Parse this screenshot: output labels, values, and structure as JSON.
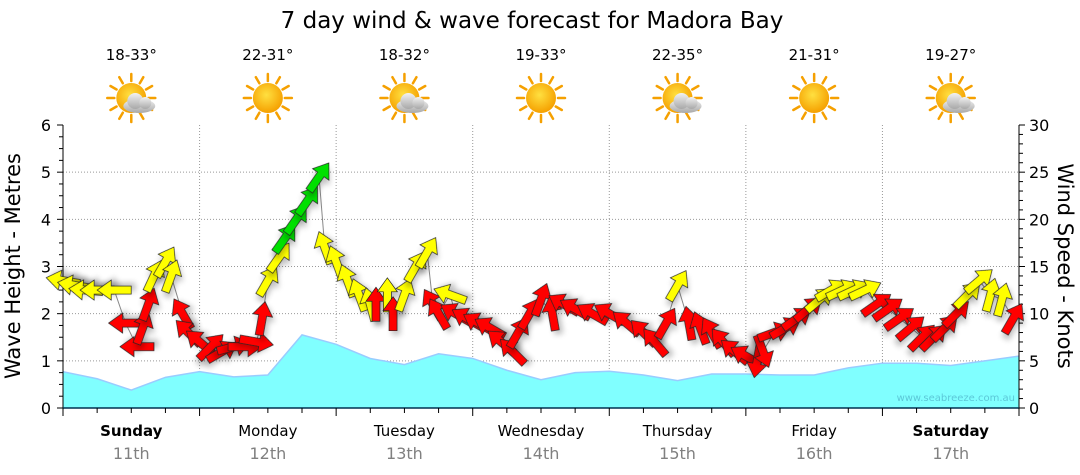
{
  "chart_data": {
    "type": "line",
    "title": "7 day wind & wave forecast for Madora Bay",
    "ylabel_left": "Wave Height - Metres",
    "ylabel_right": "Wind Speed - Knots",
    "ylim_left": [
      0,
      6
    ],
    "ylim_right": [
      0,
      30
    ],
    "yticks_left": [
      "0",
      "1",
      "2",
      "3",
      "4",
      "5",
      "6"
    ],
    "yticks_right": [
      "0",
      "5",
      "10",
      "15",
      "20",
      "25",
      "30"
    ],
    "grid": true,
    "watermark": "www.seabreeze.com.au",
    "days": [
      {
        "name": "Sunday",
        "date": "11th",
        "bold": true,
        "temps": "18-33°",
        "weather_icon": "partly-cloudy-icon"
      },
      {
        "name": "Monday",
        "date": "12th",
        "bold": false,
        "temps": "22-31°",
        "weather_icon": "sunny-icon"
      },
      {
        "name": "Tuesday",
        "date": "13th",
        "bold": false,
        "temps": "18-32°",
        "weather_icon": "partly-cloudy-icon"
      },
      {
        "name": "Wednesday",
        "date": "14th",
        "bold": false,
        "temps": "19-33°",
        "weather_icon": "sunny-icon"
      },
      {
        "name": "Thursday",
        "date": "15th",
        "bold": false,
        "temps": "22-35°",
        "weather_icon": "partly-cloudy-icon"
      },
      {
        "name": "Friday",
        "date": "16th",
        "bold": false,
        "temps": "21-31°",
        "weather_icon": "sunny-icon"
      },
      {
        "name": "Saturday",
        "date": "17th",
        "bold": true,
        "temps": "19-27°",
        "weather_icon": "partly-cloudy-icon"
      }
    ],
    "wave_series": {
      "name": "Wave Height (m)",
      "hours": [
        0,
        6,
        12,
        18,
        24,
        30,
        36,
        42,
        48,
        54,
        60,
        66,
        72,
        78,
        84,
        90,
        96,
        102,
        108,
        114,
        120,
        126,
        132,
        138,
        144,
        150,
        156,
        162,
        168
      ],
      "values": [
        0.77,
        0.62,
        0.38,
        0.65,
        0.77,
        0.66,
        0.7,
        1.55,
        1.35,
        1.05,
        0.92,
        1.15,
        1.05,
        0.8,
        0.6,
        0.75,
        0.78,
        0.7,
        0.58,
        0.72,
        0.72,
        0.7,
        0.7,
        0.85,
        0.95,
        0.95,
        0.9,
        1.0,
        1.1
      ]
    },
    "wind_series": {
      "name": "Wind Speed (knots) & direction",
      "points": [
        {
          "h": 0,
          "kn": 13.5,
          "dir": 280,
          "c": "yellow"
        },
        {
          "h": 2,
          "kn": 13,
          "dir": 280,
          "c": "yellow"
        },
        {
          "h": 4,
          "kn": 12.5,
          "dir": 275,
          "c": "yellow"
        },
        {
          "h": 6,
          "kn": 12.5,
          "dir": 270,
          "c": "yellow"
        },
        {
          "h": 9,
          "kn": 12.5,
          "dir": 270,
          "c": "yellow"
        },
        {
          "h": 11,
          "kn": 9,
          "dir": 270,
          "c": "red"
        },
        {
          "h": 13,
          "kn": 6.5,
          "dir": 270,
          "c": "red"
        },
        {
          "h": 14,
          "kn": 8.5,
          "dir": 20,
          "c": "red"
        },
        {
          "h": 15,
          "kn": 11,
          "dir": 20,
          "c": "red"
        },
        {
          "h": 16,
          "kn": 14,
          "dir": 25,
          "c": "yellow"
        },
        {
          "h": 18,
          "kn": 15.5,
          "dir": 30,
          "c": "yellow"
        },
        {
          "h": 19,
          "kn": 14,
          "dir": 20,
          "c": "yellow"
        },
        {
          "h": 21,
          "kn": 10,
          "dir": 330,
          "c": "red"
        },
        {
          "h": 22,
          "kn": 8,
          "dir": 315,
          "c": "red"
        },
        {
          "h": 24,
          "kn": 7,
          "dir": 310,
          "c": "red"
        },
        {
          "h": 26,
          "kn": 6.5,
          "dir": 45,
          "c": "red"
        },
        {
          "h": 28,
          "kn": 6,
          "dir": 60,
          "c": "red"
        },
        {
          "h": 30,
          "kn": 6.5,
          "dir": 75,
          "c": "red"
        },
        {
          "h": 32,
          "kn": 6.5,
          "dir": 90,
          "c": "red"
        },
        {
          "h": 34,
          "kn": 7,
          "dir": 100,
          "c": "red"
        },
        {
          "h": 35,
          "kn": 9.5,
          "dir": 10,
          "c": "red"
        },
        {
          "h": 36,
          "kn": 13.5,
          "dir": 30,
          "c": "yellow"
        },
        {
          "h": 38,
          "kn": 16,
          "dir": 35,
          "c": "yellow"
        },
        {
          "h": 39,
          "kn": 18,
          "dir": 35,
          "c": "green"
        },
        {
          "h": 41,
          "kn": 20,
          "dir": 35,
          "c": "green"
        },
        {
          "h": 43,
          "kn": 22,
          "dir": 35,
          "c": "green"
        },
        {
          "h": 45,
          "kn": 24.5,
          "dir": 35,
          "c": "green"
        },
        {
          "h": 46,
          "kn": 17,
          "dir": 340,
          "c": "yellow"
        },
        {
          "h": 48,
          "kn": 15.5,
          "dir": 340,
          "c": "yellow"
        },
        {
          "h": 50,
          "kn": 13.5,
          "dir": 340,
          "c": "yellow"
        },
        {
          "h": 52,
          "kn": 12,
          "dir": 340,
          "c": "yellow"
        },
        {
          "h": 54,
          "kn": 11,
          "dir": 345,
          "c": "yellow"
        },
        {
          "h": 55,
          "kn": 11,
          "dir": 0,
          "c": "red"
        },
        {
          "h": 57,
          "kn": 12,
          "dir": 0,
          "c": "yellow"
        },
        {
          "h": 58,
          "kn": 10,
          "dir": 0,
          "c": "red"
        },
        {
          "h": 60,
          "kn": 12,
          "dir": 20,
          "c": "yellow"
        },
        {
          "h": 62,
          "kn": 15,
          "dir": 30,
          "c": "yellow"
        },
        {
          "h": 64,
          "kn": 16.5,
          "dir": 30,
          "c": "yellow"
        },
        {
          "h": 65,
          "kn": 11,
          "dir": 330,
          "c": "red"
        },
        {
          "h": 66,
          "kn": 10,
          "dir": 330,
          "c": "red"
        },
        {
          "h": 68,
          "kn": 12,
          "dir": 290,
          "c": "yellow"
        },
        {
          "h": 69,
          "kn": 10,
          "dir": 300,
          "c": "red"
        },
        {
          "h": 71,
          "kn": 9.5,
          "dir": 300,
          "c": "red"
        },
        {
          "h": 73,
          "kn": 9,
          "dir": 300,
          "c": "red"
        },
        {
          "h": 75,
          "kn": 8.5,
          "dir": 300,
          "c": "red"
        },
        {
          "h": 77,
          "kn": 7,
          "dir": 310,
          "c": "red"
        },
        {
          "h": 79,
          "kn": 6,
          "dir": 315,
          "c": "red"
        },
        {
          "h": 80,
          "kn": 8,
          "dir": 30,
          "c": "red"
        },
        {
          "h": 82,
          "kn": 10,
          "dir": 30,
          "c": "red"
        },
        {
          "h": 84,
          "kn": 11.5,
          "dir": 20,
          "c": "red"
        },
        {
          "h": 86,
          "kn": 10,
          "dir": 350,
          "c": "red"
        },
        {
          "h": 88,
          "kn": 11,
          "dir": 300,
          "c": "red"
        },
        {
          "h": 90,
          "kn": 10.5,
          "dir": 300,
          "c": "red"
        },
        {
          "h": 93,
          "kn": 10,
          "dir": 300,
          "c": "red"
        },
        {
          "h": 96,
          "kn": 10,
          "dir": 300,
          "c": "red"
        },
        {
          "h": 99,
          "kn": 9,
          "dir": 310,
          "c": "red"
        },
        {
          "h": 102,
          "kn": 8,
          "dir": 315,
          "c": "red"
        },
        {
          "h": 104,
          "kn": 7,
          "dir": 320,
          "c": "red"
        },
        {
          "h": 106,
          "kn": 9,
          "dir": 30,
          "c": "red"
        },
        {
          "h": 108,
          "kn": 13,
          "dir": 30,
          "c": "yellow"
        },
        {
          "h": 110,
          "kn": 9,
          "dir": 350,
          "c": "red"
        },
        {
          "h": 112,
          "kn": 8.5,
          "dir": 340,
          "c": "red"
        },
        {
          "h": 114,
          "kn": 8,
          "dir": 330,
          "c": "red"
        },
        {
          "h": 116,
          "kn": 7,
          "dir": 320,
          "c": "red"
        },
        {
          "h": 118,
          "kn": 6,
          "dir": 310,
          "c": "red"
        },
        {
          "h": 120,
          "kn": 5.5,
          "dir": 300,
          "c": "red"
        },
        {
          "h": 122,
          "kn": 5,
          "dir": 190,
          "c": "red"
        },
        {
          "h": 123,
          "kn": 6,
          "dir": 160,
          "c": "red"
        },
        {
          "h": 125,
          "kn": 8,
          "dir": 70,
          "c": "red"
        },
        {
          "h": 127,
          "kn": 8.5,
          "dir": 60,
          "c": "red"
        },
        {
          "h": 129,
          "kn": 9.5,
          "dir": 55,
          "c": "red"
        },
        {
          "h": 131,
          "kn": 10.5,
          "dir": 50,
          "c": "red"
        },
        {
          "h": 133,
          "kn": 11.5,
          "dir": 50,
          "c": "yellow"
        },
        {
          "h": 135,
          "kn": 12.5,
          "dir": 60,
          "c": "yellow"
        },
        {
          "h": 137,
          "kn": 12.5,
          "dir": 65,
          "c": "yellow"
        },
        {
          "h": 139,
          "kn": 12.5,
          "dir": 65,
          "c": "yellow"
        },
        {
          "h": 141,
          "kn": 12.5,
          "dir": 65,
          "c": "yellow"
        },
        {
          "h": 143,
          "kn": 11,
          "dir": 55,
          "c": "red"
        },
        {
          "h": 145,
          "kn": 10.5,
          "dir": 55,
          "c": "red"
        },
        {
          "h": 147,
          "kn": 9.5,
          "dir": 55,
          "c": "red"
        },
        {
          "h": 149,
          "kn": 8.5,
          "dir": 50,
          "c": "red"
        },
        {
          "h": 151,
          "kn": 7.5,
          "dir": 45,
          "c": "red"
        },
        {
          "h": 153,
          "kn": 7.5,
          "dir": 45,
          "c": "red"
        },
        {
          "h": 155,
          "kn": 8.5,
          "dir": 45,
          "c": "red"
        },
        {
          "h": 157,
          "kn": 10,
          "dir": 45,
          "c": "red"
        },
        {
          "h": 159,
          "kn": 12,
          "dir": 45,
          "c": "yellow"
        },
        {
          "h": 161,
          "kn": 13.5,
          "dir": 50,
          "c": "yellow"
        },
        {
          "h": 163,
          "kn": 12,
          "dir": 15,
          "c": "yellow"
        },
        {
          "h": 165,
          "kn": 11.5,
          "dir": 15,
          "c": "yellow"
        },
        {
          "h": 167,
          "kn": 9.5,
          "dir": 30,
          "c": "red"
        }
      ]
    },
    "colors": {
      "red": "#ff0000",
      "yellow": "#ffff00",
      "green": "#00e000",
      "wave_fill": "#80ffff",
      "wave_line": "#99ccff"
    }
  }
}
